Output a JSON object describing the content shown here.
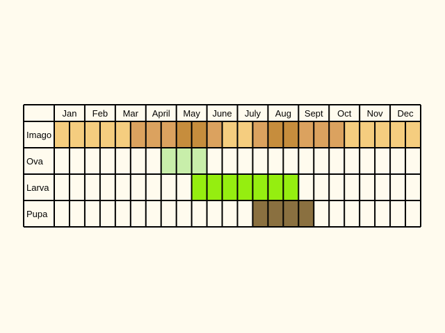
{
  "chart_data": {
    "type": "table",
    "title": "",
    "months": [
      "Jan",
      "Feb",
      "Mar",
      "April",
      "May",
      "June",
      "July",
      "Aug",
      "Sept",
      "Oct",
      "Nov",
      "Dec"
    ],
    "subdivisions_per_month": 2,
    "rows": [
      {
        "label": "Imago",
        "fills": [
          "#f5cd7f",
          "#f5cd7f",
          "#f5cd7f",
          "#f5cd7f",
          "#f5cd7f",
          "#dba25f",
          "#dba25f",
          "#dba25f",
          "#c68d3d",
          "#c68d3d",
          "#dba25f",
          "#f5cd7f",
          "#f5cd7f",
          "#dba25f",
          "#c68d3d",
          "#c68d3d",
          "#dba25f",
          "#dba25f",
          "#dba25f",
          "#f5cd7f",
          "#f5cd7f",
          "#f5cd7f",
          "#f5cd7f",
          "#f5cd7f"
        ]
      },
      {
        "label": "Ova",
        "fills": [
          null,
          null,
          null,
          null,
          null,
          null,
          null,
          "#c8eeaa",
          "#c8eeaa",
          "#c8eeaa",
          null,
          null,
          null,
          null,
          null,
          null,
          null,
          null,
          null,
          null,
          null,
          null,
          null,
          null
        ]
      },
      {
        "label": "Larva",
        "fills": [
          null,
          null,
          null,
          null,
          null,
          null,
          null,
          null,
          null,
          "#95ee10",
          "#95ee10",
          "#95ee10",
          "#95ee10",
          "#95ee10",
          "#95ee10",
          "#95ee10",
          null,
          null,
          null,
          null,
          null,
          null,
          null,
          null
        ]
      },
      {
        "label": "Pupa",
        "fills": [
          null,
          null,
          null,
          null,
          null,
          null,
          null,
          null,
          null,
          null,
          null,
          null,
          null,
          "#8a7040",
          "#8a7040",
          "#8a7040",
          "#8a7040",
          null,
          null,
          null,
          null,
          null,
          null,
          null
        ]
      }
    ],
    "colors": {
      "background": "#fffbee",
      "grid": "#000000",
      "empty_cell": "#fffbee"
    }
  }
}
